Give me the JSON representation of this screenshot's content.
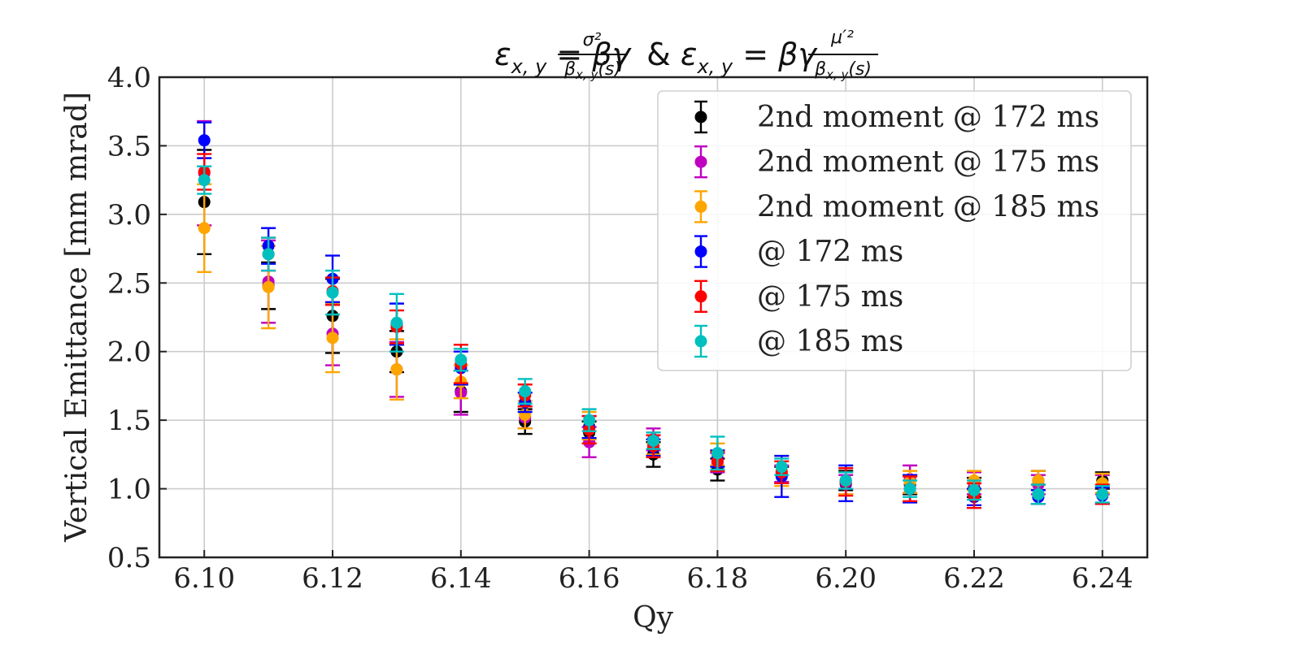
{
  "chart_data": {
    "type": "scatter",
    "title": {
      "part1_main": "ε",
      "part1_sub": "x, y",
      "part1_eq": " = βγ",
      "part1_num": "σ²",
      "part1_den": "β",
      "part1_den_sub": "x, y",
      "part1_den_tail": "(s)",
      "amp": " & ",
      "part2_main": "ε",
      "part2_sub": "x, y",
      "part2_eq": " = βγ",
      "part2_num": "μ′²",
      "part2_den": "β",
      "part2_den_sub": "x, y",
      "part2_den_tail": "(s)"
    },
    "xlabel": "Qy",
    "ylabel": "Vertical Emittance [mm mrad]",
    "xlim": [
      6.093,
      6.247
    ],
    "ylim": [
      0.5,
      4.0
    ],
    "xticks": [
      "6.10",
      "6.12",
      "6.14",
      "6.16",
      "6.18",
      "6.20",
      "6.22",
      "6.24"
    ],
    "yticks": [
      "0.5",
      "1.0",
      "1.5",
      "2.0",
      "2.5",
      "3.0",
      "3.5",
      "4.0"
    ],
    "grid": true,
    "legend_position": "upper-right",
    "series": [
      {
        "name": "2nd moment @ 172 ms",
        "color": "#000000",
        "x": [
          6.1,
          6.11,
          6.12,
          6.13,
          6.14,
          6.15,
          6.16,
          6.17,
          6.18,
          6.19,
          6.2,
          6.21,
          6.22,
          6.23,
          6.24
        ],
        "y": [
          3.09,
          2.48,
          2.26,
          2.0,
          1.71,
          1.49,
          1.41,
          1.25,
          1.14,
          1.1,
          1.06,
          1.03,
          1.01,
          1.06,
          1.06
        ],
        "err": [
          0.38,
          0.17,
          0.27,
          0.15,
          0.15,
          0.09,
          0.08,
          0.09,
          0.08,
          0.06,
          0.07,
          0.07,
          0.07,
          0.07,
          0.06
        ]
      },
      {
        "name": "2nd moment @ 175 ms",
        "color": "#c000c0",
        "x": [
          6.1,
          6.11,
          6.12,
          6.13,
          6.14,
          6.15,
          6.16,
          6.17,
          6.18,
          6.19,
          6.2,
          6.21,
          6.22,
          6.23,
          6.24
        ],
        "y": [
          3.3,
          2.51,
          2.13,
          1.87,
          1.7,
          1.52,
          1.34,
          1.36,
          1.19,
          1.11,
          1.03,
          1.07,
          1.04,
          1.03,
          1.03
        ],
        "err": [
          0.38,
          0.3,
          0.23,
          0.2,
          0.16,
          0.08,
          0.11,
          0.08,
          0.07,
          0.06,
          0.07,
          0.1,
          0.08,
          0.07,
          0.07
        ]
      },
      {
        "name": "2nd moment @ 185 ms",
        "color": "#ffa500",
        "x": [
          6.1,
          6.11,
          6.12,
          6.13,
          6.14,
          6.15,
          6.16,
          6.17,
          6.18,
          6.19,
          6.2,
          6.21,
          6.22,
          6.23,
          6.24
        ],
        "y": [
          2.9,
          2.47,
          2.1,
          1.87,
          1.78,
          1.54,
          1.46,
          1.33,
          1.25,
          1.13,
          1.04,
          1.05,
          1.06,
          1.06,
          1.04
        ],
        "err": [
          0.32,
          0.3,
          0.25,
          0.22,
          0.12,
          0.1,
          0.1,
          0.08,
          0.08,
          0.11,
          0.08,
          0.08,
          0.07,
          0.07,
          0.07
        ]
      },
      {
        "name": "@ 172 ms",
        "color": "#0000ff",
        "x": [
          6.1,
          6.11,
          6.12,
          6.13,
          6.14,
          6.15,
          6.16,
          6.17,
          6.18,
          6.19,
          6.2,
          6.21,
          6.22,
          6.23,
          6.24
        ],
        "y": [
          3.54,
          2.77,
          2.53,
          2.2,
          1.88,
          1.63,
          1.45,
          1.3,
          1.22,
          1.09,
          1.04,
          1.0,
          0.94,
          0.94,
          0.95
        ],
        "err": [
          0.13,
          0.13,
          0.17,
          0.15,
          0.12,
          0.07,
          0.08,
          0.06,
          0.06,
          0.15,
          0.13,
          0.1,
          0.06,
          0.05,
          0.06
        ]
      },
      {
        "name": "@ 175 ms",
        "color": "#ff0000",
        "x": [
          6.1,
          6.11,
          6.12,
          6.13,
          6.14,
          6.15,
          6.16,
          6.17,
          6.18,
          6.19,
          6.2,
          6.21,
          6.22,
          6.23,
          6.24
        ],
        "y": [
          3.31,
          2.71,
          2.44,
          2.18,
          1.91,
          1.68,
          1.43,
          1.31,
          1.2,
          1.12,
          1.05,
          1.0,
          0.95,
          0.96,
          0.96
        ],
        "err": [
          0.13,
          0.12,
          0.1,
          0.12,
          0.14,
          0.08,
          0.1,
          0.08,
          0.07,
          0.08,
          0.1,
          0.09,
          0.09,
          0.07,
          0.07
        ]
      },
      {
        "name": "@ 185 ms",
        "color": "#00bfbf",
        "x": [
          6.1,
          6.11,
          6.12,
          6.13,
          6.14,
          6.15,
          6.16,
          6.17,
          6.18,
          6.19,
          6.2,
          6.21,
          6.22,
          6.23,
          6.24
        ],
        "y": [
          3.25,
          2.71,
          2.43,
          2.21,
          1.94,
          1.71,
          1.5,
          1.35,
          1.26,
          1.16,
          1.06,
          1.0,
          0.99,
          0.96,
          0.96
        ],
        "err": [
          0.1,
          0.12,
          0.16,
          0.21,
          0.08,
          0.09,
          0.08,
          0.06,
          0.12,
          0.06,
          0.06,
          0.06,
          0.07,
          0.07,
          0.06
        ]
      }
    ]
  }
}
